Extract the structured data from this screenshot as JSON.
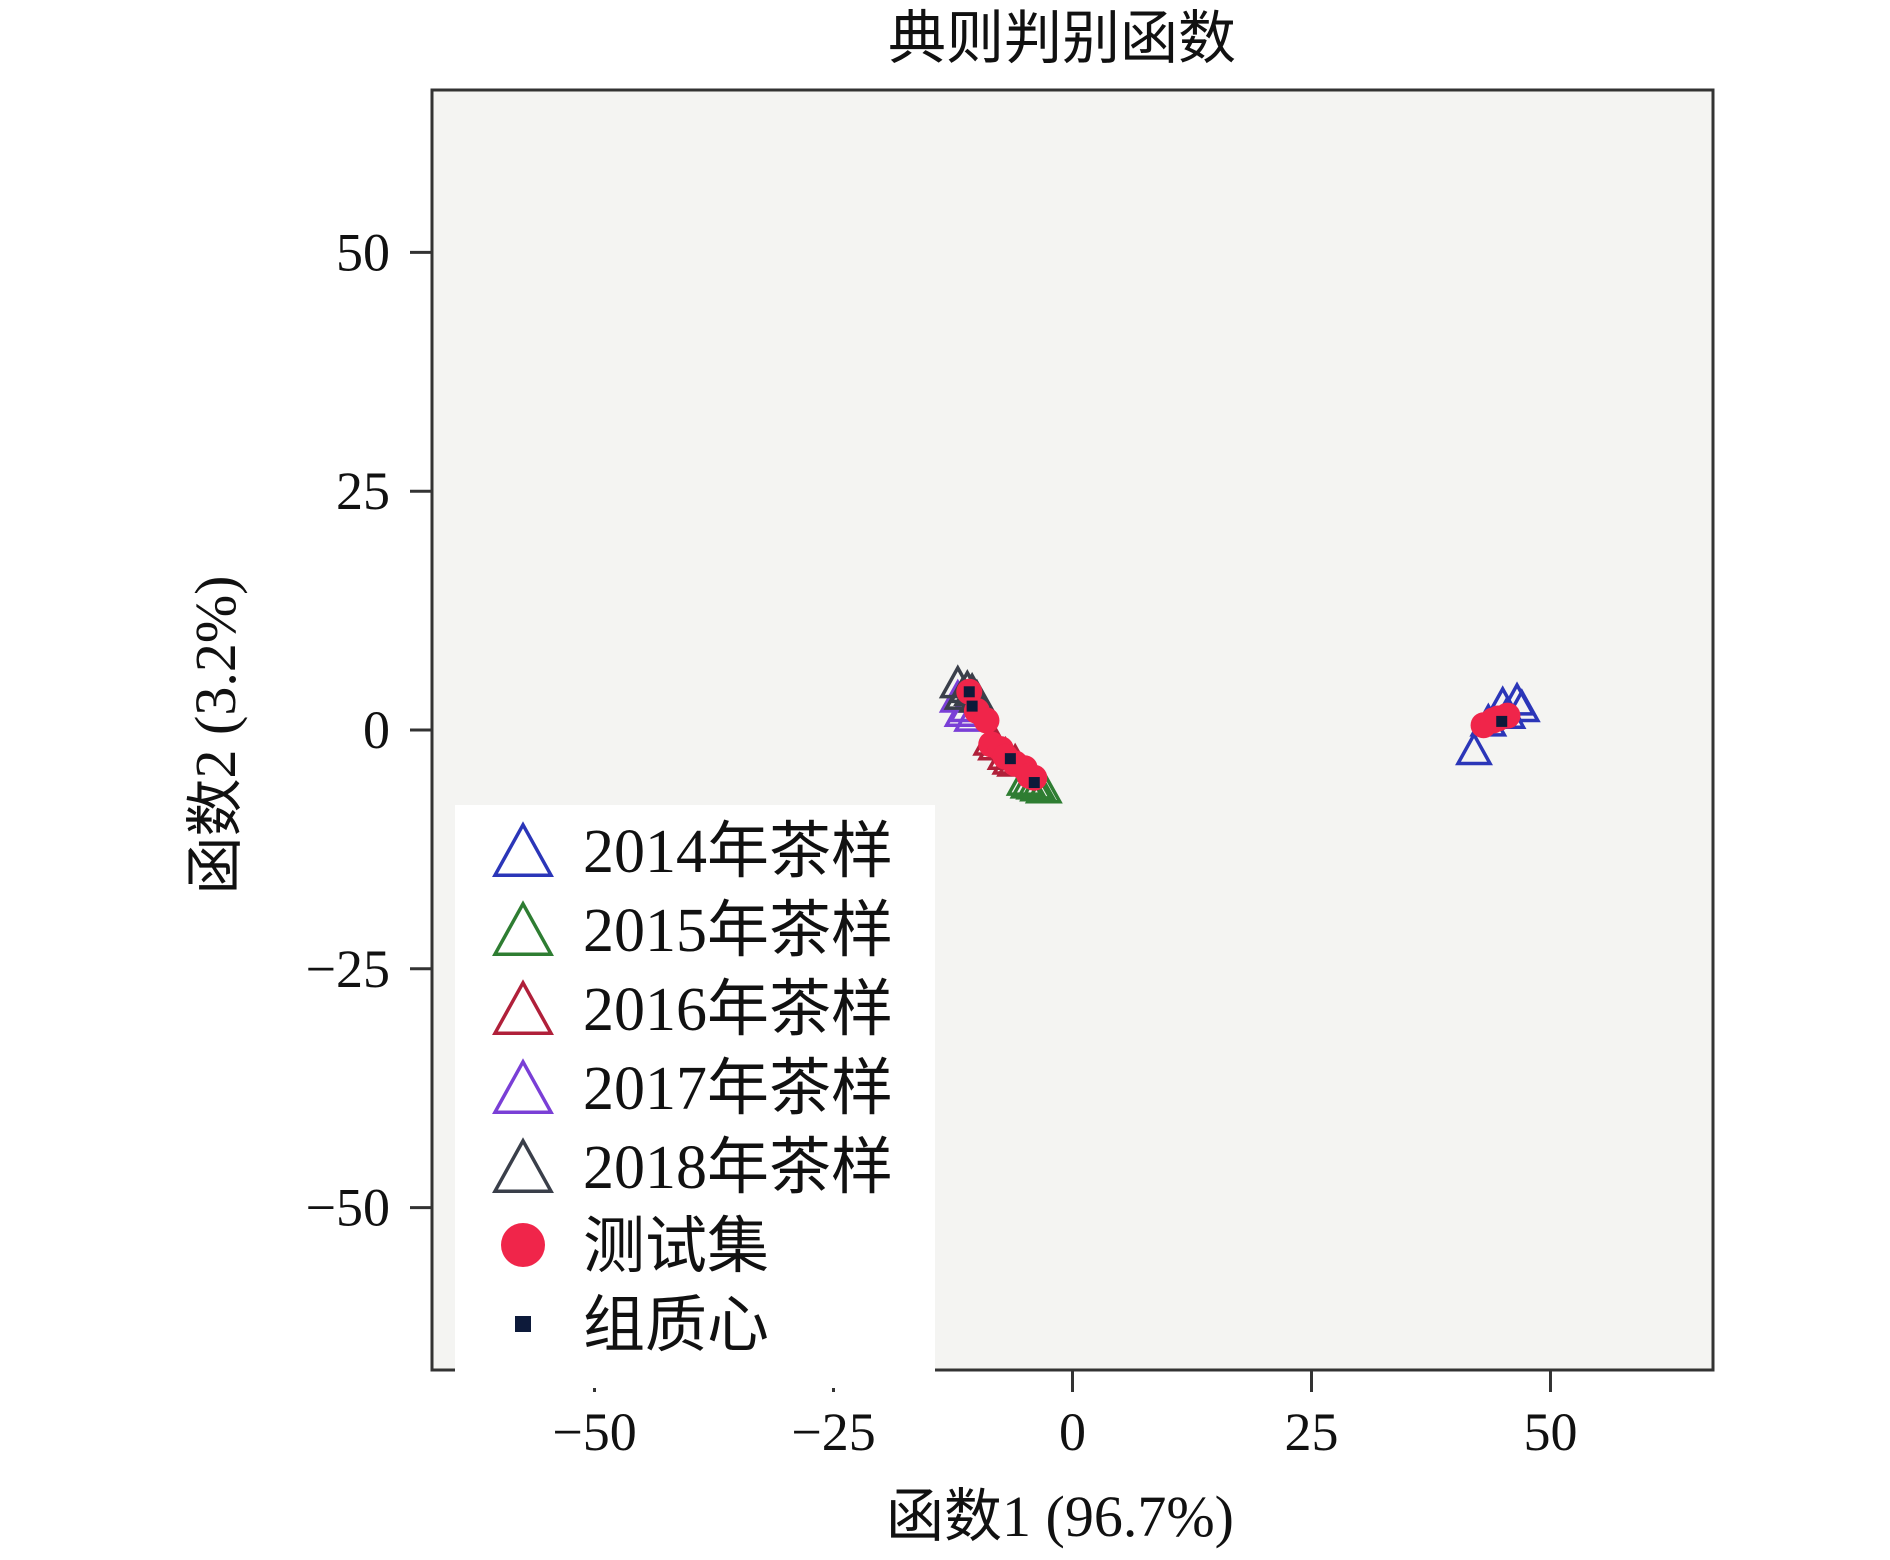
{
  "chart_data": {
    "type": "scatter",
    "title": "典则判别函数",
    "xlabel": "函数1 (96.7%)",
    "ylabel": "函数2 (3.2%)",
    "xlim": [
      -67,
      67
    ],
    "ylim": [
      -67,
      67
    ],
    "xticks": [
      -50,
      -25,
      0,
      25,
      50
    ],
    "yticks": [
      50,
      25,
      0,
      -25,
      -50
    ],
    "xtick_labels": [
      "−50",
      "−25",
      "0",
      "25",
      "50"
    ],
    "ytick_labels": [
      "50",
      "25",
      "0",
      "−25",
      "−50"
    ],
    "grid": false,
    "legend_position": "bottom-left",
    "plot_background": "#f4f4f2",
    "series": [
      {
        "name": "2014年茶样",
        "marker": "triangle-open",
        "color": "#2b36b8",
        "points": [
          [
            42.0,
            -2.0
          ],
          [
            45.0,
            2.8
          ],
          [
            46.5,
            3.2
          ],
          [
            47.0,
            2.5
          ],
          [
            43.5,
            1.0
          ],
          [
            45.5,
            1.8
          ]
        ]
      },
      {
        "name": "2015年茶样",
        "marker": "triangle-open",
        "color": "#2e7d32",
        "points": [
          [
            -3.0,
            -6.0
          ],
          [
            -4.0,
            -5.6
          ],
          [
            -5.0,
            -5.2
          ],
          [
            -3.6,
            -5.8
          ],
          [
            -4.6,
            -5.5
          ]
        ]
      },
      {
        "name": "2016年茶样",
        "marker": "triangle-open",
        "color": "#b0203a",
        "points": [
          [
            -8.0,
            -1.5
          ],
          [
            -7.0,
            -2.5
          ],
          [
            -6.0,
            -3.2
          ],
          [
            -8.5,
            -1.0
          ],
          [
            -6.5,
            -3.0
          ]
        ]
      },
      {
        "name": "2017年茶样",
        "marker": "triangle-open",
        "color": "#7a3fd6",
        "points": [
          [
            -12.0,
            3.5
          ],
          [
            -11.5,
            2.0
          ],
          [
            -10.5,
            1.5
          ],
          [
            -11.0,
            2.5
          ]
        ]
      },
      {
        "name": "2018年茶样",
        "marker": "triangle-open",
        "color": "#3a3f4a",
        "points": [
          [
            -12.0,
            5.0
          ],
          [
            -11.0,
            4.5
          ],
          [
            -10.0,
            3.5
          ],
          [
            -11.5,
            3.8
          ],
          [
            -10.5,
            4.2
          ]
        ]
      },
      {
        "name": "测试集",
        "marker": "circle-filled",
        "color": "#f0254a",
        "points": [
          [
            -10.8,
            4.0
          ],
          [
            -10.0,
            2.0
          ],
          [
            -9.0,
            1.0
          ],
          [
            -8.5,
            -1.5
          ],
          [
            -7.5,
            -2.0
          ],
          [
            -7.0,
            -2.8
          ],
          [
            -6.0,
            -3.5
          ],
          [
            -5.0,
            -4.0
          ],
          [
            -4.5,
            -4.8
          ],
          [
            -4.0,
            -5.0
          ],
          [
            43.0,
            0.5
          ],
          [
            44.0,
            1.0
          ],
          [
            45.5,
            1.5
          ],
          [
            44.5,
            1.2
          ]
        ]
      },
      {
        "name": "组质心",
        "marker": "square-filled",
        "color": "#0d1a3a",
        "points": [
          [
            -10.8,
            4.0
          ],
          [
            -10.5,
            2.5
          ],
          [
            -6.5,
            -3.0
          ],
          [
            -4.0,
            -5.5
          ],
          [
            44.9,
            0.9
          ]
        ]
      }
    ]
  }
}
